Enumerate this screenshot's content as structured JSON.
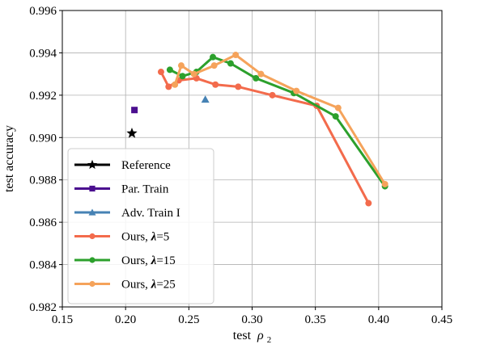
{
  "chart_data": {
    "type": "line",
    "xlabel": "test",
    "xlabel_symbol": "ρ",
    "xlabel_subscript": "2",
    "ylabel": "test accuracy",
    "xlim": [
      0.15,
      0.45
    ],
    "ylim": [
      0.982,
      0.996
    ],
    "xticks": [
      "0.15",
      "0.20",
      "0.25",
      "0.30",
      "0.35",
      "0.40",
      "0.45"
    ],
    "yticks": [
      "0.982",
      "0.984",
      "0.986",
      "0.988",
      "0.990",
      "0.992",
      "0.994",
      "0.996"
    ],
    "grid": true,
    "legend_position": "lower-left",
    "series": [
      {
        "name": "Reference",
        "label_prefix": "Reference",
        "label_lambda": "",
        "color": "#000000",
        "marker": "star",
        "points": [
          [
            0.205,
            0.9902
          ]
        ]
      },
      {
        "name": "Par. Train",
        "label_prefix": "Par. Train",
        "label_lambda": "",
        "color": "#4b0f8f",
        "marker": "square",
        "points": [
          [
            0.207,
            0.9913
          ]
        ]
      },
      {
        "name": "Adv. Train I",
        "label_prefix": "Adv. Train I",
        "label_lambda": "",
        "color": "#4682b4",
        "marker": "triangle",
        "points": [
          [
            0.263,
            0.9918
          ]
        ]
      },
      {
        "name": "Ours, λ=5",
        "label_prefix": "Ours, ",
        "label_lambda": "=5",
        "color": "#f36b4c",
        "marker": "circle",
        "points": [
          [
            0.228,
            0.9931
          ],
          [
            0.234,
            0.9924
          ],
          [
            0.242,
            0.9927
          ],
          [
            0.256,
            0.9928
          ],
          [
            0.271,
            0.9925
          ],
          [
            0.289,
            0.9924
          ],
          [
            0.316,
            0.992
          ],
          [
            0.351,
            0.9915
          ],
          [
            0.392,
            0.9869
          ]
        ]
      },
      {
        "name": "Ours, λ=15",
        "label_prefix": "Ours, ",
        "label_lambda": "=15",
        "color": "#2ca02c",
        "marker": "circle",
        "points": [
          [
            0.235,
            0.9932
          ],
          [
            0.245,
            0.9929
          ],
          [
            0.256,
            0.9931
          ],
          [
            0.269,
            0.9938
          ],
          [
            0.283,
            0.9935
          ],
          [
            0.303,
            0.9928
          ],
          [
            0.333,
            0.9921
          ],
          [
            0.366,
            0.991
          ],
          [
            0.405,
            0.9877
          ]
        ]
      },
      {
        "name": "Ours, λ=25",
        "label_prefix": "Ours, ",
        "label_lambda": "=25",
        "color": "#f5a35b",
        "marker": "circle",
        "points": [
          [
            0.239,
            0.9925
          ],
          [
            0.244,
            0.9934
          ],
          [
            0.254,
            0.993
          ],
          [
            0.27,
            0.9934
          ],
          [
            0.287,
            0.9939
          ],
          [
            0.307,
            0.993
          ],
          [
            0.335,
            0.9922
          ],
          [
            0.368,
            0.9914
          ],
          [
            0.405,
            0.9878
          ]
        ]
      }
    ]
  }
}
